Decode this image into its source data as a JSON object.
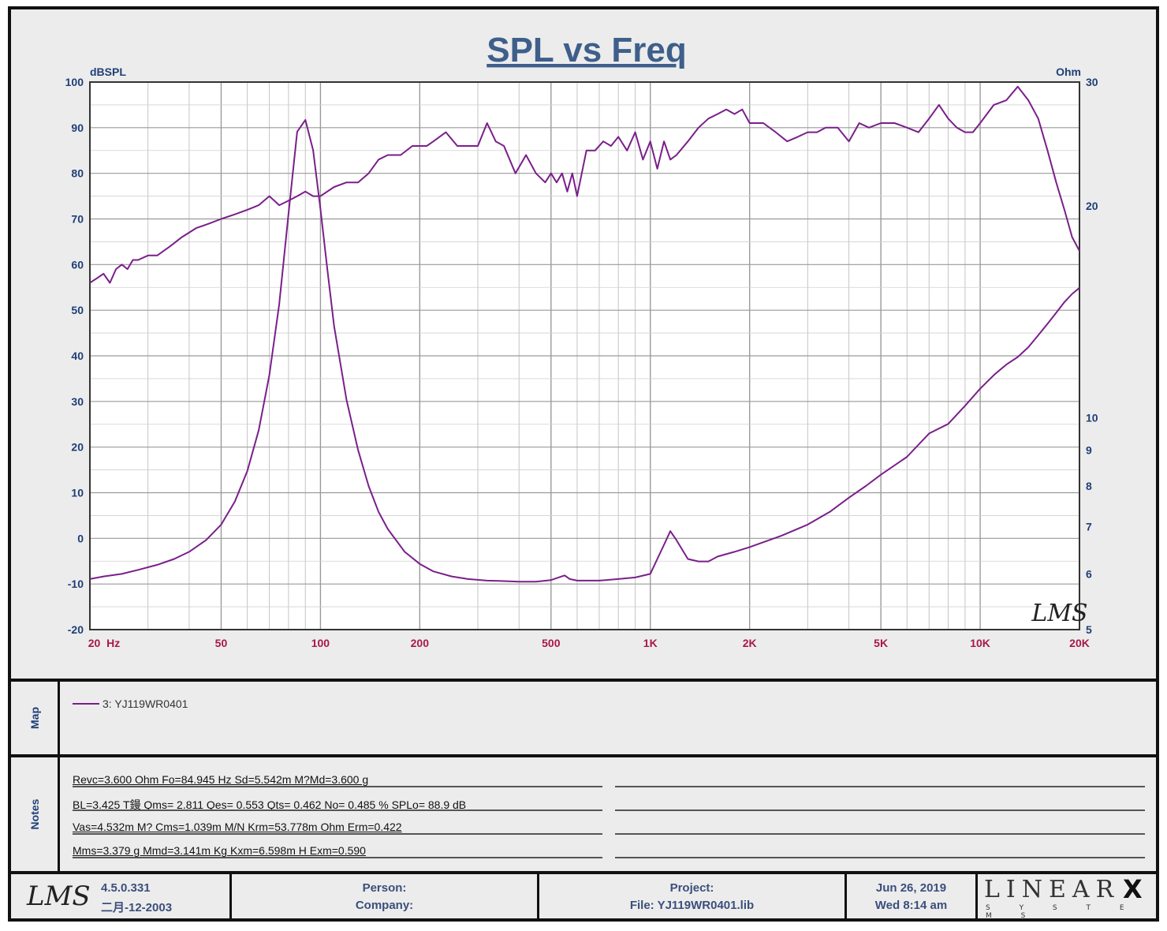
{
  "chart_data": {
    "type": "line",
    "title": "SPL vs Freq",
    "y_left_unit": "dBSPL",
    "y_right_unit": "Ohm",
    "x_scale": "log",
    "xlim": [
      20,
      20000
    ],
    "ylim_left": [
      -20,
      100
    ],
    "ylim_right": [
      5,
      30
    ],
    "y_right_scale": "log",
    "grid": true,
    "x_tick_labels": [
      {
        "v": 20,
        "label": "20  Hz"
      },
      {
        "v": 50,
        "label": "50"
      },
      {
        "v": 100,
        "label": "100"
      },
      {
        "v": 200,
        "label": "200"
      },
      {
        "v": 500,
        "label": "500"
      },
      {
        "v": 1000,
        "label": "1K"
      },
      {
        "v": 2000,
        "label": "2K"
      },
      {
        "v": 5000,
        "label": "5K"
      },
      {
        "v": 10000,
        "label": "10K"
      },
      {
        "v": 20000,
        "label": "20K"
      }
    ],
    "y_left_ticks": [
      100,
      90,
      80,
      70,
      60,
      50,
      40,
      30,
      20,
      10,
      0,
      -10,
      -20
    ],
    "y_right_ticks": [
      30,
      20,
      10,
      9,
      8,
      7,
      6,
      5
    ],
    "series": [
      {
        "name": "SPL",
        "axis": "left",
        "color": "#7a1f8a",
        "x": [
          20,
          21,
          22,
          23,
          24,
          25,
          26,
          27,
          28,
          30,
          32,
          35,
          38,
          42,
          46,
          50,
          55,
          60,
          65,
          70,
          75,
          80,
          85,
          90,
          95,
          100,
          110,
          120,
          130,
          140,
          150,
          160,
          175,
          190,
          200,
          210,
          220,
          240,
          260,
          280,
          300,
          320,
          340,
          360,
          390,
          420,
          450,
          480,
          500,
          520,
          540,
          560,
          580,
          600,
          640,
          680,
          720,
          760,
          800,
          850,
          900,
          950,
          1000,
          1050,
          1100,
          1150,
          1200,
          1300,
          1400,
          1500,
          1600,
          1700,
          1800,
          1900,
          2000,
          2200,
          2400,
          2600,
          2800,
          3000,
          3200,
          3400,
          3700,
          4000,
          4300,
          4600,
          5000,
          5500,
          6000,
          6500,
          7000,
          7500,
          8000,
          8500,
          9000,
          9500,
          10000,
          11000,
          12000,
          13000,
          14000,
          15000,
          16000,
          17000,
          18000,
          19000,
          20000
        ],
        "y": [
          56,
          57,
          58,
          56,
          59,
          60,
          59,
          61,
          61,
          62,
          62,
          64,
          66,
          68,
          69,
          70,
          71,
          72,
          73,
          75,
          73,
          74,
          75,
          76,
          75,
          75,
          77,
          78,
          78,
          80,
          83,
          84,
          84,
          86,
          86,
          86,
          87,
          89,
          86,
          86,
          86,
          91,
          87,
          86,
          80,
          84,
          80,
          78,
          80,
          78,
          80,
          76,
          80,
          75,
          85,
          85,
          87,
          86,
          88,
          85,
          89,
          83,
          87,
          81,
          87,
          83,
          84,
          87,
          90,
          92,
          93,
          94,
          93,
          94,
          91,
          91,
          89,
          87,
          88,
          89,
          89,
          90,
          90,
          87,
          91,
          90,
          91,
          91,
          90,
          89,
          92,
          95,
          92,
          90,
          89,
          89,
          91,
          95,
          96,
          99,
          96,
          92,
          85,
          78,
          72,
          66,
          63
        ]
      },
      {
        "name": "Impedance",
        "axis": "right",
        "color": "#7a1f8a",
        "x": [
          20,
          22,
          25,
          28,
          32,
          36,
          40,
          45,
          50,
          55,
          60,
          65,
          70,
          75,
          80,
          85,
          90,
          95,
          100,
          105,
          110,
          120,
          130,
          140,
          150,
          160,
          180,
          200,
          220,
          250,
          280,
          320,
          360,
          400,
          450,
          500,
          550,
          570,
          600,
          650,
          700,
          800,
          900,
          1000,
          1050,
          1100,
          1150,
          1200,
          1300,
          1400,
          1500,
          1600,
          1800,
          2000,
          2500,
          3000,
          3500,
          4000,
          4500,
          5000,
          6000,
          7000,
          8000,
          9000,
          10000,
          11000,
          12000,
          13000,
          14000,
          15000,
          16000,
          17000,
          18000,
          19000,
          20000
        ],
        "y": [
          5.9,
          5.95,
          6.0,
          6.08,
          6.18,
          6.3,
          6.45,
          6.7,
          7.05,
          7.6,
          8.4,
          9.6,
          11.5,
          14.5,
          19.5,
          25.5,
          26.5,
          24,
          19.8,
          16.2,
          13.5,
          10.6,
          9.0,
          8.0,
          7.35,
          6.95,
          6.45,
          6.2,
          6.05,
          5.95,
          5.9,
          5.87,
          5.86,
          5.85,
          5.85,
          5.88,
          5.97,
          5.9,
          5.87,
          5.87,
          5.87,
          5.9,
          5.93,
          6.0,
          6.3,
          6.6,
          6.9,
          6.7,
          6.3,
          6.25,
          6.25,
          6.35,
          6.45,
          6.55,
          6.8,
          7.05,
          7.35,
          7.7,
          8.0,
          8.3,
          8.8,
          9.5,
          9.8,
          10.4,
          11.0,
          11.5,
          11.9,
          12.2,
          12.6,
          13.1,
          13.6,
          14.1,
          14.6,
          15.0,
          15.3
        ]
      }
    ]
  },
  "map": {
    "side_label": "Map",
    "legend_entry": "3: YJ119WR0401",
    "legend_color": "#7a1f8a"
  },
  "notes": {
    "side_label": "Notes",
    "lines": [
      "Revc=3.600 Ohm  Fo=84.945 Hz  Sd=5.542m M?Md=3.600 g",
      "BL=3.425 T鏝  Qms= 2.811  Qes= 0.553  Qts= 0.462  No= 0.485 %  SPLo= 88.9 dB",
      "Vas=4.532m M? Cms=1.039m M/N  Krm=53.778m Ohm  Erm=0.422",
      "Mms=3.379 g  Mmd=3.141m Kg  Kxm=6.598m H  Exm=0.590"
    ]
  },
  "footer": {
    "version": "4.5.0.331",
    "version_date": "二月-12-2003",
    "person_label": "Person:",
    "company_label": "Company:",
    "project_label": "Project:",
    "file_label": "File: YJ119WR0401.lib",
    "date": "Jun 26, 2019",
    "time": "Wed  8:14 am",
    "brand_top": "LINEAR",
    "brand_x": "X",
    "brand_sub": "S Y S T E M S",
    "logo_text": "LMS"
  }
}
